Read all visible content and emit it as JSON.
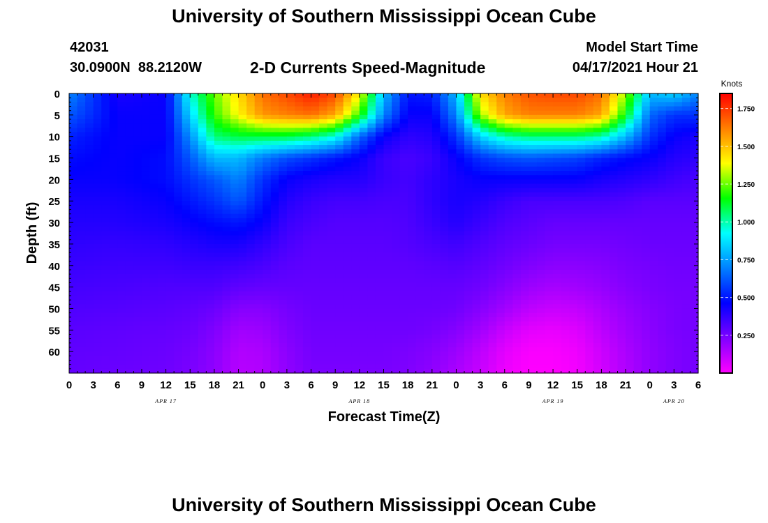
{
  "header": {
    "title": "University of Southern Mississippi Ocean Cube",
    "station_id": "42031",
    "coordinates": "30.0900N  88.2120W",
    "plot_title": "2-D Currents Speed-Magnitude",
    "model_start_label": "Model Start Time",
    "model_start_value": "04/17/2021 Hour 21",
    "footer_title": "University of Southern Mississippi Ocean Cube"
  },
  "chart_data": {
    "type": "heatmap",
    "title": "2-D Currents Speed-Magnitude",
    "xlabel": "Forecast Time(Z)",
    "ylabel": "Depth (ft)",
    "x_tick_labels": [
      "0",
      "3",
      "6",
      "9",
      "12",
      "15",
      "18",
      "21",
      "0",
      "3",
      "6",
      "9",
      "12",
      "15",
      "18",
      "21",
      "0",
      "3",
      "6",
      "9",
      "12",
      "15",
      "18",
      "21",
      "0",
      "3",
      "6"
    ],
    "x_hours_range": [
      0,
      78
    ],
    "date_labels": [
      {
        "label": "APR 17",
        "hour": 12
      },
      {
        "label": "APR 18",
        "hour": 36
      },
      {
        "label": "APR 19",
        "hour": 60
      },
      {
        "label": "APR 20",
        "hour": 75
      }
    ],
    "y_tick_labels": [
      "0",
      "5",
      "10",
      "15",
      "20",
      "25",
      "30",
      "35",
      "40",
      "45",
      "50",
      "55",
      "60"
    ],
    "ylim": [
      0,
      65
    ],
    "colorbar": {
      "unit": "Knots",
      "tick_labels": [
        "0.250",
        "0.500",
        "0.750",
        "1.000",
        "1.250",
        "1.500",
        "1.750"
      ],
      "range": [
        0.0,
        1.85
      ],
      "colors": [
        "#ff00ff",
        "#7f00ff",
        "#0000ff",
        "#0080ff",
        "#00ffff",
        "#00ff00",
        "#ffff00",
        "#ff8000",
        "#ff0000"
      ]
    },
    "speed_field": {
      "hours": [
        0,
        6,
        12,
        15,
        18,
        21,
        24,
        27,
        30,
        33,
        36,
        39,
        42,
        45,
        48,
        51,
        54,
        57,
        60,
        63,
        66,
        69,
        72,
        75,
        78
      ],
      "depths": [
        0,
        5,
        10,
        15,
        20,
        25,
        30,
        35,
        40,
        45,
        50,
        55,
        60,
        65
      ],
      "values": [
        [
          0.7,
          0.42,
          0.45,
          0.95,
          1.25,
          1.45,
          1.65,
          1.72,
          1.8,
          1.72,
          1.4,
          0.8,
          0.5,
          0.52,
          0.8,
          1.45,
          1.62,
          1.7,
          1.72,
          1.72,
          1.65,
          1.3,
          0.8,
          0.85,
          0.7
        ],
        [
          0.62,
          0.45,
          0.45,
          0.85,
          1.2,
          1.4,
          1.58,
          1.62,
          1.65,
          1.55,
          1.2,
          0.7,
          0.45,
          0.45,
          0.7,
          1.3,
          1.55,
          1.62,
          1.62,
          1.62,
          1.55,
          1.15,
          0.65,
          0.55,
          0.55
        ],
        [
          0.52,
          0.45,
          0.45,
          0.72,
          1.05,
          1.1,
          1.1,
          1.1,
          1.05,
          0.95,
          0.65,
          0.45,
          0.38,
          0.4,
          0.55,
          0.85,
          1.0,
          1.05,
          1.05,
          1.05,
          1.0,
          0.8,
          0.55,
          0.45,
          0.42
        ],
        [
          0.48,
          0.45,
          0.48,
          0.62,
          0.8,
          0.8,
          0.68,
          0.6,
          0.55,
          0.5,
          0.45,
          0.36,
          0.33,
          0.36,
          0.45,
          0.55,
          0.6,
          0.62,
          0.6,
          0.58,
          0.52,
          0.48,
          0.45,
          0.4,
          0.38
        ],
        [
          0.45,
          0.45,
          0.48,
          0.55,
          0.62,
          0.7,
          0.55,
          0.45,
          0.42,
          0.4,
          0.4,
          0.36,
          0.34,
          0.38,
          0.42,
          0.45,
          0.45,
          0.45,
          0.45,
          0.45,
          0.42,
          0.4,
          0.38,
          0.35,
          0.33
        ],
        [
          0.42,
          0.42,
          0.45,
          0.5,
          0.55,
          0.62,
          0.5,
          0.4,
          0.36,
          0.34,
          0.34,
          0.33,
          0.33,
          0.38,
          0.42,
          0.4,
          0.36,
          0.33,
          0.33,
          0.33,
          0.33,
          0.32,
          0.3,
          0.3,
          0.3
        ],
        [
          0.4,
          0.4,
          0.42,
          0.45,
          0.48,
          0.5,
          0.45,
          0.36,
          0.33,
          0.31,
          0.31,
          0.31,
          0.32,
          0.36,
          0.4,
          0.36,
          0.32,
          0.3,
          0.28,
          0.28,
          0.28,
          0.28,
          0.28,
          0.28,
          0.28
        ],
        [
          0.38,
          0.37,
          0.38,
          0.4,
          0.42,
          0.42,
          0.38,
          0.33,
          0.3,
          0.3,
          0.3,
          0.3,
          0.31,
          0.33,
          0.35,
          0.32,
          0.29,
          0.27,
          0.25,
          0.25,
          0.25,
          0.26,
          0.27,
          0.27,
          0.27
        ],
        [
          0.36,
          0.35,
          0.35,
          0.36,
          0.36,
          0.35,
          0.33,
          0.3,
          0.29,
          0.29,
          0.29,
          0.29,
          0.29,
          0.3,
          0.31,
          0.29,
          0.26,
          0.23,
          0.21,
          0.21,
          0.22,
          0.24,
          0.25,
          0.26,
          0.26
        ],
        [
          0.34,
          0.33,
          0.32,
          0.32,
          0.32,
          0.29,
          0.28,
          0.28,
          0.28,
          0.28,
          0.28,
          0.28,
          0.28,
          0.28,
          0.28,
          0.26,
          0.22,
          0.18,
          0.16,
          0.17,
          0.19,
          0.22,
          0.24,
          0.25,
          0.25
        ],
        [
          0.32,
          0.31,
          0.3,
          0.29,
          0.27,
          0.22,
          0.22,
          0.25,
          0.27,
          0.27,
          0.27,
          0.27,
          0.27,
          0.27,
          0.26,
          0.22,
          0.17,
          0.12,
          0.1,
          0.11,
          0.15,
          0.19,
          0.22,
          0.24,
          0.25
        ],
        [
          0.3,
          0.29,
          0.28,
          0.27,
          0.23,
          0.17,
          0.18,
          0.23,
          0.26,
          0.26,
          0.26,
          0.26,
          0.26,
          0.25,
          0.22,
          0.17,
          0.1,
          0.05,
          0.04,
          0.06,
          0.12,
          0.17,
          0.21,
          0.24,
          0.25
        ],
        [
          0.29,
          0.28,
          0.27,
          0.25,
          0.21,
          0.14,
          0.15,
          0.21,
          0.25,
          0.25,
          0.25,
          0.25,
          0.24,
          0.22,
          0.18,
          0.12,
          0.05,
          0.01,
          0.01,
          0.03,
          0.09,
          0.15,
          0.2,
          0.23,
          0.25
        ],
        [
          0.28,
          0.27,
          0.26,
          0.24,
          0.2,
          0.13,
          0.14,
          0.2,
          0.24,
          0.24,
          0.24,
          0.24,
          0.23,
          0.2,
          0.15,
          0.1,
          0.03,
          0.0,
          0.0,
          0.02,
          0.08,
          0.14,
          0.2,
          0.23,
          0.25
        ]
      ]
    }
  }
}
